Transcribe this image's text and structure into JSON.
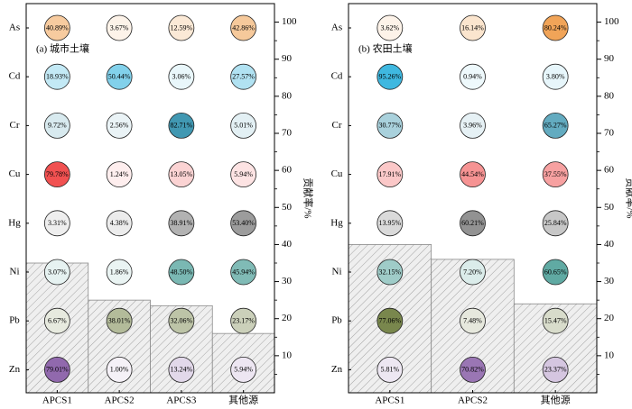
{
  "chart_data": [
    {
      "type": "bubble-matrix",
      "title": "(a) 城市土壤",
      "categories": [
        "APCS1",
        "APCS2",
        "APCS3",
        "其他源"
      ],
      "rows": [
        "As",
        "Cd",
        "Cr",
        "Cu",
        "Hg",
        "Ni",
        "Pb",
        "Zn"
      ],
      "values": [
        [
          40.89,
          3.67,
          12.59,
          42.86
        ],
        [
          18.93,
          50.44,
          3.06,
          27.57
        ],
        [
          9.72,
          2.56,
          82.71,
          5.01
        ],
        [
          79.78,
          1.24,
          13.05,
          5.94
        ],
        [
          3.31,
          4.38,
          38.91,
          53.4
        ],
        [
          3.07,
          1.86,
          48.5,
          45.94
        ],
        [
          6.67,
          38.01,
          32.06,
          23.17
        ],
        [
          79.01,
          1.0,
          13.24,
          5.94
        ]
      ],
      "labels": [
        [
          "40.89%",
          "3.67%",
          "12.59%",
          "42.86%"
        ],
        [
          "18.93%",
          "50.44%",
          "3.06%",
          "27.57%"
        ],
        [
          "9.72%",
          "2.56%",
          "82.71%",
          "5.01%"
        ],
        [
          "79.78%",
          "1.24%",
          "13.05%",
          "5.94%"
        ],
        [
          "3.31%",
          "4.38%",
          "38.91%",
          "53.40%"
        ],
        [
          "3.07%",
          "1.86%",
          "48.50%",
          "45.94%"
        ],
        [
          "6.67%",
          "38.01%",
          "32.06%",
          "23.17%"
        ],
        [
          "79.01%",
          "1.00%",
          "13.24%",
          "5.94%"
        ]
      ],
      "bars": [
        35.0,
        25.0,
        23.5,
        16.0
      ],
      "ylabel": "贡献率/%",
      "ylim": [
        0,
        105
      ],
      "yticks": [
        10,
        20,
        30,
        40,
        50,
        60,
        70,
        80,
        90,
        100
      ]
    },
    {
      "type": "bubble-matrix",
      "title": "(b) 农田土壤",
      "categories": [
        "APCS1",
        "APCS2",
        "其他源"
      ],
      "rows": [
        "As",
        "Cd",
        "Cr",
        "Cu",
        "Hg",
        "Ni",
        "Pb",
        "Zn"
      ],
      "values": [
        [
          3.62,
          16.14,
          80.24
        ],
        [
          95.26,
          0.94,
          3.8
        ],
        [
          30.77,
          3.96,
          65.27
        ],
        [
          17.91,
          44.54,
          37.55
        ],
        [
          13.95,
          60.21,
          25.84
        ],
        [
          32.15,
          7.2,
          60.65
        ],
        [
          77.06,
          7.48,
          15.47
        ],
        [
          5.81,
          70.82,
          23.37
        ]
      ],
      "labels": [
        [
          "3.62%",
          "16.14%",
          "80.24%"
        ],
        [
          "95.26%",
          "0.94%",
          "3.80%"
        ],
        [
          "30.77%",
          "3.96%",
          "65.27%"
        ],
        [
          "17.91%",
          "44.54%",
          "37.55%"
        ],
        [
          "13.95%",
          "60.21%",
          "25.84%"
        ],
        [
          "32.15%",
          "7.20%",
          "60.65%"
        ],
        [
          "77.06%",
          "7.48%",
          "15.47%"
        ],
        [
          "5.81%",
          "70.82%",
          "23.37%"
        ]
      ],
      "bars": [
        40.0,
        36.0,
        24.0
      ],
      "ylabel": "贡献率/%",
      "ylim": [
        0,
        105
      ],
      "yticks": [
        10,
        20,
        30,
        40,
        50,
        60,
        70,
        80,
        90,
        100
      ]
    }
  ],
  "colors": {
    "As": "#f0a050",
    "Cd": "#3fb8e0",
    "Cr": "#3d96b0",
    "Cu": "#f04848",
    "Hg": "#6e6e6e",
    "Ni": "#2d8f86",
    "Pb": "#6e7d3e",
    "Zn": "#8a60a8"
  }
}
